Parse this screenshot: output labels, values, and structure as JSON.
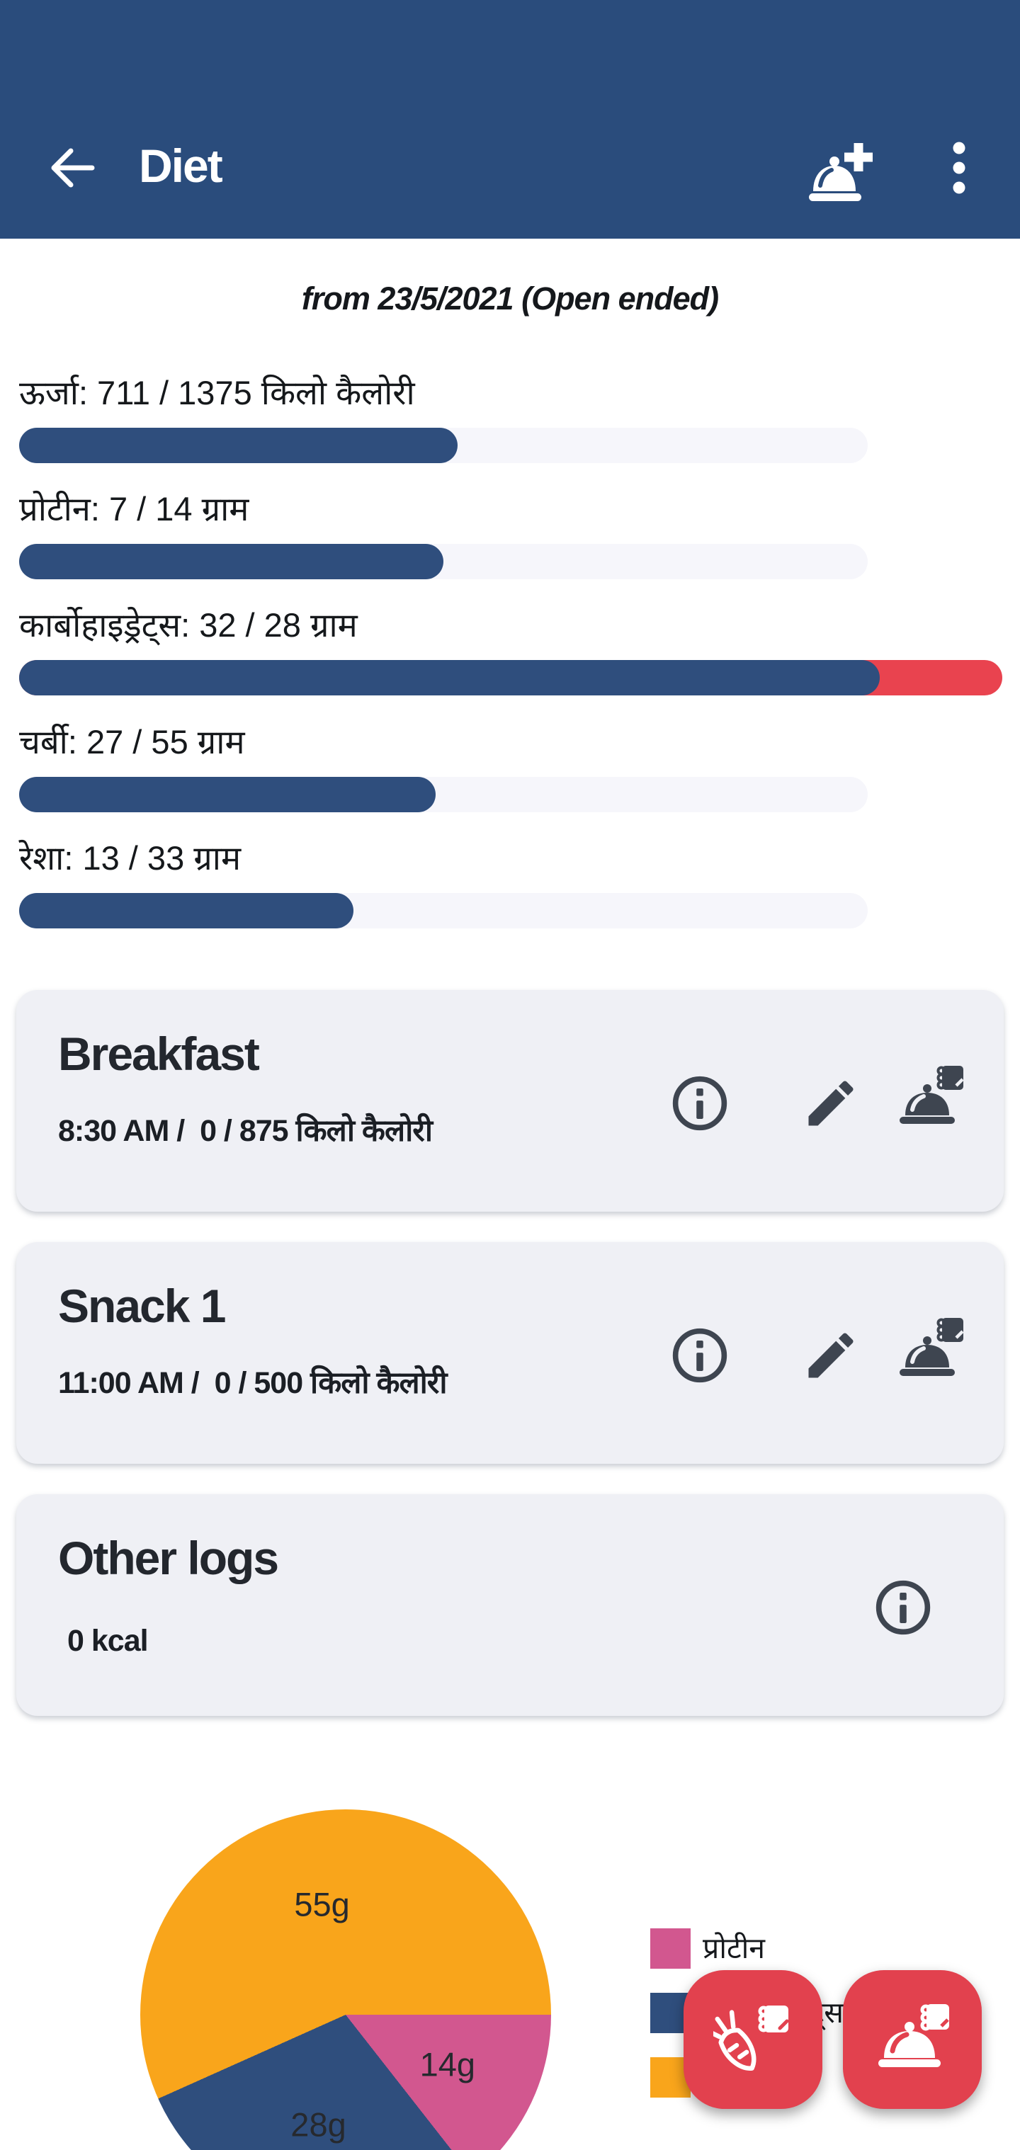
{
  "header": {
    "title": "Diet",
    "back_icon": "arrow-left",
    "add_meal_icon": "dish-plus",
    "menu_icon": "dots-vertical"
  },
  "period_label": "from 23/5/2021 (Open ended)",
  "nutrients": [
    {
      "label": "ऊर्जा: 711 / 1375 किलो कैलोरी",
      "value": 711,
      "goal": 1375
    },
    {
      "label": "प्रोटीन: 7 / 14 ग्राम",
      "value": 7,
      "goal": 14
    },
    {
      "label": "कार्बोहाइड्रेट्स: 32 / 28 ग्राम",
      "value": 32,
      "goal": 28
    },
    {
      "label": "चर्बी: 27 / 55 ग्राम",
      "value": 27,
      "goal": 55
    },
    {
      "label": "रेशा: 13 / 33 ग्राम",
      "value": 13,
      "goal": 33
    }
  ],
  "meals": [
    {
      "title": "Breakfast",
      "subtitle": "8:30 AM /  0 / 875 किलो कैलोरी"
    },
    {
      "title": "Snack 1",
      "subtitle": "11:00 AM /  0 / 500 किलो कैलोरी"
    },
    {
      "title": "Other logs",
      "subtitle": "0 kcal"
    }
  ],
  "chart_data": {
    "type": "pie",
    "title": "",
    "start_angle_deg_from_east": 0,
    "legend_position": "right",
    "slices": [
      {
        "label": "प्रोटीन",
        "value": 14,
        "unit": "g",
        "display": "14g",
        "color": "#d2578f"
      },
      {
        "label": "कार्बोहाइड्रेट्स",
        "value": 28,
        "unit": "g",
        "display": "28g",
        "color": "#2f4e7d"
      },
      {
        "label": "चर्बी",
        "value": 55,
        "unit": "g",
        "display": "55g",
        "color": "#f9a51b"
      }
    ]
  },
  "fabs": [
    {
      "icon": "carrot-note"
    },
    {
      "icon": "dish-note"
    }
  ],
  "colors": {
    "header": "#2a4c7c",
    "bar_fill": "#2f4e7d",
    "bar_track": "#f6f6fb",
    "over_red": "#e9434f",
    "fab_red": "#e2414e",
    "card_bg": "#eff0f5",
    "icon_dark": "#3e4550"
  }
}
